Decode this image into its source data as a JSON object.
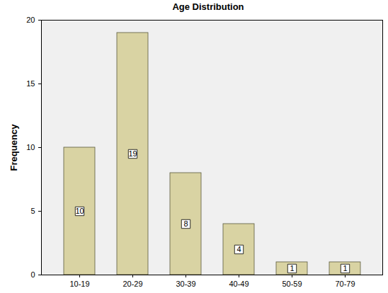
{
  "chart_data": {
    "type": "bar",
    "title": "Age Distribution",
    "y_label": "Frequency",
    "categories": [
      "10-19",
      "20-29",
      "30-39",
      "40-49",
      "50-59",
      "70-79"
    ],
    "values": [
      10,
      19,
      8,
      4,
      1,
      1
    ],
    "color": "#d9d3a3",
    "ylim": [
      0,
      20
    ],
    "yticks": [
      0,
      5,
      10,
      15,
      20
    ],
    "grid": false,
    "data_labels": true
  }
}
